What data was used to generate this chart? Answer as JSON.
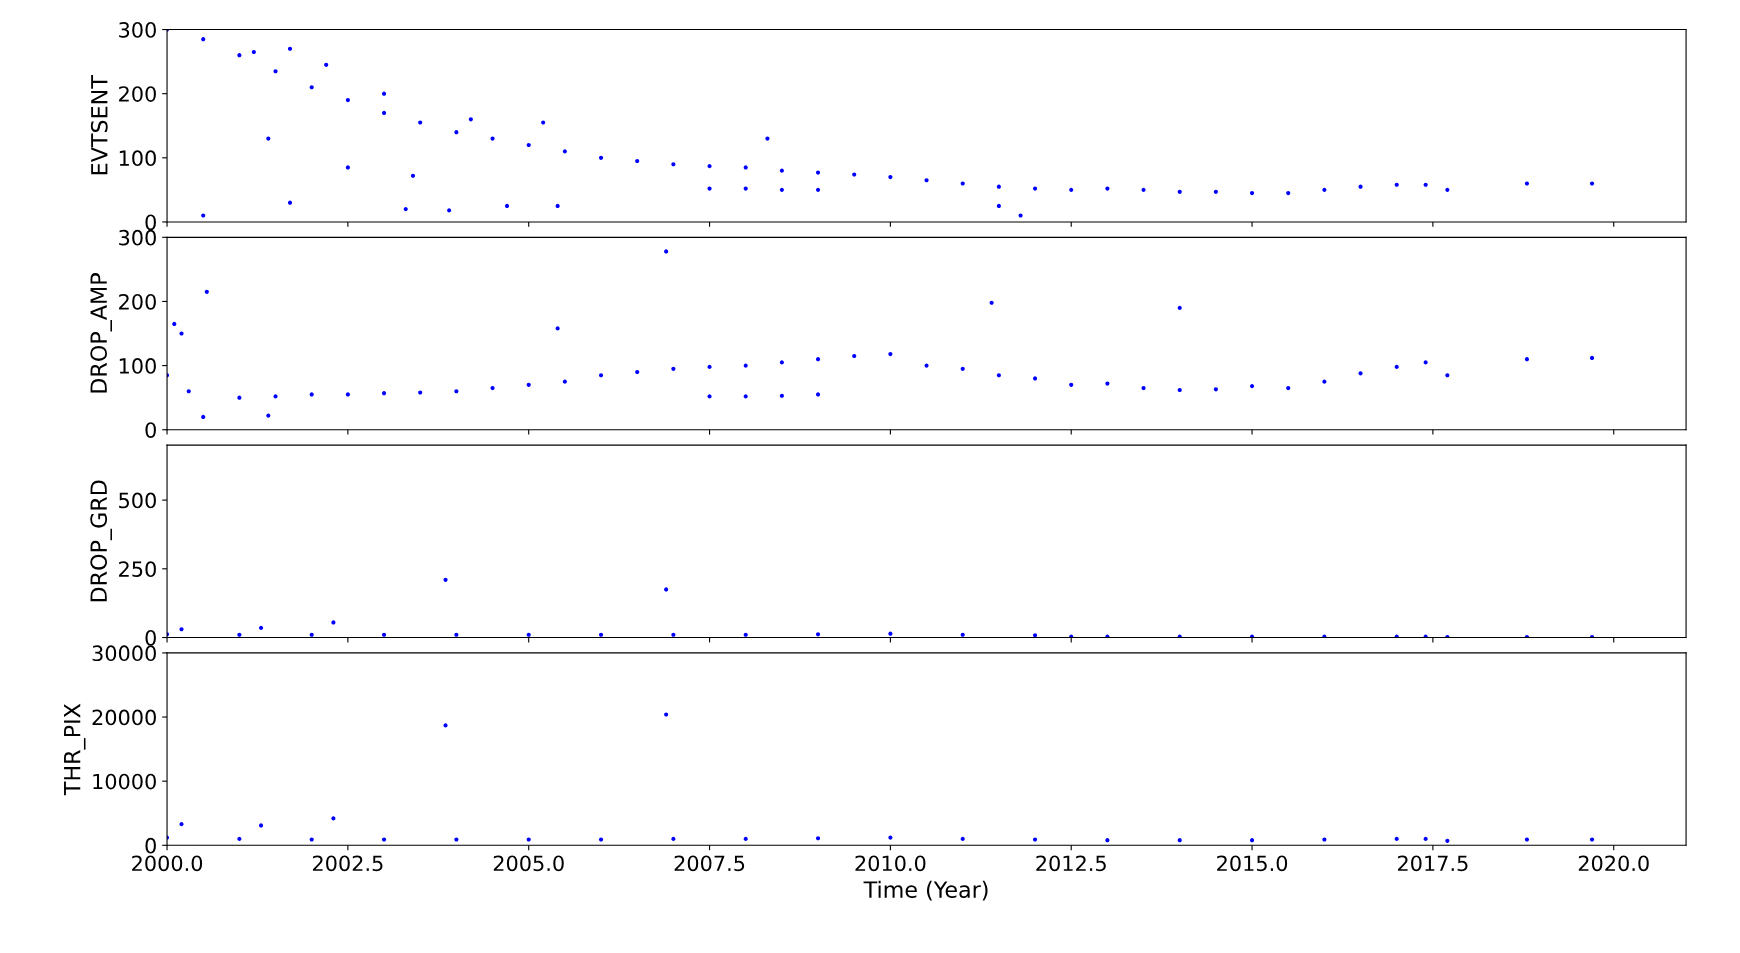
{
  "chart_data": [
    {
      "type": "scatter",
      "ylabel": "EVTSENT",
      "xlim": [
        2000,
        2021
      ],
      "xticks": [
        2000,
        2002.5,
        2005,
        2007.5,
        2010,
        2012.5,
        2015,
        2017.5,
        2020
      ],
      "ylim": [
        0,
        300
      ],
      "yticks": [
        0,
        100,
        200,
        300
      ],
      "tick_labels": "y",
      "marker": "circle",
      "grid": false,
      "series": [
        {
          "color": "#0000ff",
          "x": [
            2000,
            2000.5,
            2001,
            2001.5,
            2002,
            2002.5,
            2003,
            2003.5,
            2004,
            2004.5,
            2005,
            2005.5,
            2006,
            2006.5,
            2007,
            2007.5,
            2008,
            2008.5,
            2009,
            2009.5,
            2010,
            2010.5,
            2011,
            2011.5,
            2012,
            2012.5,
            2013,
            2013.5,
            2014,
            2014.5,
            2015,
            2015.5,
            2016,
            2016.5,
            2017,
            2017.4,
            2017.7,
            2018.8,
            2019.7,
            2000.5,
            2001.7,
            2001.4,
            2002.5,
            2003.3,
            2003.4,
            2003.9,
            2004.7,
            2005.4,
            2007.5,
            2008,
            2008.5,
            2009,
            2011.5,
            2011.8,
            2001.2,
            2001.7,
            2002.2,
            2003,
            2004.2,
            2005.2,
            2008.3
          ],
          "values": [
            300,
            285,
            260,
            235,
            210,
            190,
            170,
            155,
            140,
            130,
            120,
            110,
            100,
            95,
            90,
            87,
            85,
            80,
            77,
            74,
            70,
            65,
            60,
            55,
            52,
            50,
            52,
            50,
            47,
            47,
            45,
            45,
            50,
            55,
            58,
            58,
            50,
            60,
            60,
            10,
            30,
            130,
            85,
            20,
            72,
            18,
            25,
            25,
            52,
            52,
            50,
            50,
            25,
            10,
            265,
            270,
            245,
            200,
            160,
            155,
            130
          ]
        }
      ]
    },
    {
      "type": "scatter",
      "ylabel": "DROP_AMP",
      "xlim": [
        2000,
        2021
      ],
      "xticks": [
        2000,
        2002.5,
        2005,
        2007.5,
        2010,
        2012.5,
        2015,
        2017.5,
        2020
      ],
      "ylim": [
        0,
        300
      ],
      "yticks": [
        0,
        100,
        200,
        300
      ],
      "tick_labels": "y",
      "marker": "circle",
      "grid": false,
      "series": [
        {
          "color": "#0000ff",
          "x": [
            2000,
            2000.3,
            2001,
            2001.5,
            2002,
            2002.5,
            2003,
            2003.5,
            2004,
            2004.5,
            2005,
            2005.5,
            2006,
            2006.5,
            2007,
            2007.5,
            2008,
            2008.5,
            2009,
            2009.5,
            2010,
            2010.5,
            2011,
            2011.5,
            2012,
            2012.5,
            2013,
            2013.5,
            2014,
            2014.5,
            2015,
            2015.5,
            2016,
            2016.5,
            2017,
            2017.4,
            2017.7,
            2018.8,
            2019.7,
            2000.1,
            2000.2,
            2000.55,
            2006.9,
            2011.4,
            2014,
            2005.4,
            2000.5,
            2001.4,
            2007.5,
            2008,
            2008.5,
            2009
          ],
          "values": [
            85,
            60,
            50,
            52,
            55,
            55,
            57,
            58,
            60,
            65,
            70,
            75,
            85,
            90,
            95,
            98,
            100,
            105,
            110,
            115,
            118,
            100,
            95,
            85,
            80,
            70,
            72,
            65,
            62,
            63,
            68,
            65,
            75,
            88,
            98,
            105,
            85,
            110,
            112,
            165,
            150,
            215,
            278,
            198,
            190,
            158,
            20,
            22,
            52,
            52,
            53,
            55
          ]
        }
      ]
    },
    {
      "type": "scatter",
      "ylabel": "DROP_GRD",
      "xlim": [
        2000,
        2021
      ],
      "xticks": [
        2000,
        2002.5,
        2005,
        2007.5,
        2010,
        2012.5,
        2015,
        2017.5,
        2020
      ],
      "ylim": [
        0,
        700
      ],
      "yticks": [
        0,
        250,
        500
      ],
      "tick_labels": "y",
      "marker": "circle",
      "grid": false,
      "series": [
        {
          "color": "#0000ff",
          "x": [
            2000,
            2001,
            2002,
            2003,
            2004,
            2005,
            2006,
            2007,
            2008,
            2009,
            2010,
            2011,
            2012,
            2012.5,
            2013,
            2014,
            2015,
            2016,
            2017,
            2017.4,
            2017.7,
            2018.8,
            2019.7,
            2003.85,
            2006.9,
            2002.3,
            2000.2,
            2001.3
          ],
          "values": [
            12,
            10,
            10,
            10,
            10,
            10,
            10,
            10,
            10,
            12,
            14,
            10,
            8,
            3,
            3,
            3,
            3,
            3,
            3,
            3,
            2,
            2,
            2,
            210,
            175,
            55,
            30,
            35
          ]
        }
      ]
    },
    {
      "type": "scatter",
      "ylabel": "THR_PIX",
      "xlabel": "Time (Year)",
      "xlim": [
        2000,
        2021
      ],
      "xticks": [
        {
          "value": 2000,
          "label": "2000.0"
        },
        {
          "value": 2002.5,
          "label": "2002.5"
        },
        {
          "value": 2005,
          "label": "2005.0"
        },
        {
          "value": 2007.5,
          "label": "2007.5"
        },
        {
          "value": 2010,
          "label": "2010.0"
        },
        {
          "value": 2012.5,
          "label": "2012.5"
        },
        {
          "value": 2015,
          "label": "2015.0"
        },
        {
          "value": 2017.5,
          "label": "2017.5"
        },
        {
          "value": 2020,
          "label": "2020.0"
        }
      ],
      "ylim": [
        0,
        30000
      ],
      "yticks": [
        0,
        10000,
        20000,
        30000
      ],
      "marker": "circle",
      "grid": false,
      "series": [
        {
          "color": "#0000ff",
          "x": [
            2000,
            2001,
            2002,
            2003,
            2004,
            2005,
            2006,
            2007,
            2008,
            2009,
            2010,
            2011,
            2012,
            2013,
            2014,
            2015,
            2016,
            2017,
            2017.4,
            2017.7,
            2018.8,
            2019.7,
            2003.85,
            2006.9,
            2002.3,
            2000.2,
            2001.3
          ],
          "values": [
            1200,
            1000,
            900,
            900,
            900,
            900,
            900,
            1000,
            1000,
            1100,
            1200,
            1000,
            900,
            800,
            800,
            800,
            900,
            1000,
            1000,
            700,
            900,
            900,
            18700,
            20400,
            4200,
            3300,
            3100
          ]
        }
      ]
    }
  ]
}
